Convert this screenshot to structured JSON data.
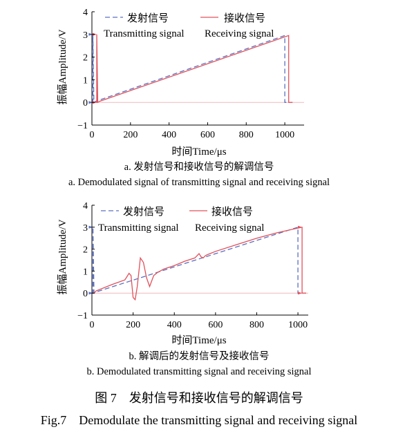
{
  "figure": {
    "title_cn": "图 7　发射信号和接收信号的解调信号",
    "title_en": "Fig.7　Demodulate the transmitting signal and receiving signal"
  },
  "colors": {
    "transmit": "#5a6fc0",
    "receive": "#e0505a",
    "axis": "#000000"
  },
  "chart_data": [
    {
      "type": "line",
      "caption_cn": "a. 发射信号和接收信号的解调信号",
      "caption_en": "a. Demodulated signal of transmitting signal and receiving signal",
      "xlabel": "时间Time/μs",
      "ylabel": "振幅Amplitude/V",
      "xlim": [
        0,
        1100
      ],
      "ylim": [
        -1,
        4
      ],
      "xticks": [
        0,
        200,
        400,
        600,
        800,
        1000
      ],
      "yticks": [
        -1,
        0,
        1,
        2,
        3,
        4
      ],
      "legend_position": "top",
      "series": [
        {
          "name": "发射信号",
          "name_en": "Transmitting signal",
          "style": "dashed",
          "x": [
            0,
            5,
            5,
            10,
            20,
            1000,
            1000,
            1005,
            1020
          ],
          "y": [
            0,
            0,
            3.0,
            0,
            0.05,
            2.95,
            0,
            0,
            0
          ]
        },
        {
          "name": "接收信号",
          "name_en": "Receiving signal",
          "style": "solid",
          "x": [
            0,
            20,
            25,
            25,
            30,
            40,
            1020,
            1020,
            1025,
            1040
          ],
          "y": [
            0,
            0,
            0,
            3.0,
            0,
            0.05,
            2.95,
            0,
            0,
            0
          ]
        }
      ]
    },
    {
      "type": "line",
      "caption_cn": "b. 解调后的发射信号及接收信号",
      "caption_en": "b. Demodulated transmitting signal and receiving signal",
      "xlabel": "时间Time/μs",
      "ylabel": "振幅Amplitude/V",
      "xlim": [
        0,
        1050
      ],
      "ylim": [
        -1,
        4
      ],
      "xticks": [
        0,
        200,
        400,
        600,
        800,
        1000
      ],
      "yticks": [
        -1,
        0,
        1,
        2,
        3,
        4
      ],
      "legend_position": "top",
      "series": [
        {
          "name": "发射信号",
          "name_en": "Transmitting signal",
          "style": "dashed",
          "x": [
            0,
            5,
            5,
            10,
            20,
            1000,
            1000,
            1005,
            1020
          ],
          "y": [
            0,
            0,
            3.0,
            0,
            0.05,
            3.0,
            0,
            0,
            0
          ]
        },
        {
          "name": "接收信号",
          "name_en": "Receiving signal",
          "style": "solid",
          "x": [
            0,
            10,
            20,
            100,
            160,
            180,
            190,
            200,
            210,
            220,
            235,
            250,
            265,
            280,
            300,
            320,
            350,
            400,
            450,
            500,
            520,
            530,
            540,
            550,
            560,
            600,
            700,
            800,
            900,
            1020,
            1020,
            1030,
            1040
          ],
          "y": [
            0,
            0,
            0.1,
            0.4,
            0.6,
            0.9,
            0.8,
            -0.2,
            -0.3,
            0.3,
            1.6,
            1.4,
            0.7,
            0.3,
            0.8,
            0.95,
            1.1,
            1.25,
            1.45,
            1.6,
            1.8,
            1.65,
            1.6,
            1.7,
            1.75,
            1.9,
            2.2,
            2.5,
            2.75,
            3.0,
            0,
            0,
            0
          ]
        }
      ]
    }
  ]
}
